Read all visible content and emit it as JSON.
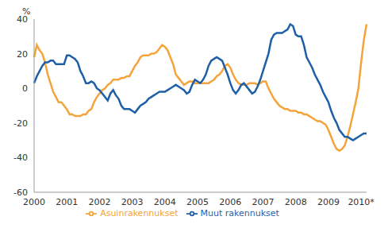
{
  "chart_data": {
    "type": "line",
    "y_label": "%",
    "categories": [
      "2000",
      null,
      null,
      null,
      null,
      null,
      null,
      null,
      null,
      null,
      null,
      null,
      "2001",
      null,
      null,
      null,
      null,
      null,
      null,
      null,
      null,
      null,
      null,
      null,
      "2002",
      null,
      null,
      null,
      null,
      null,
      null,
      null,
      null,
      null,
      null,
      null,
      "2003",
      null,
      null,
      null,
      null,
      null,
      null,
      null,
      null,
      null,
      null,
      null,
      "2004",
      null,
      null,
      null,
      null,
      null,
      null,
      null,
      null,
      null,
      null,
      null,
      "2005",
      null,
      null,
      null,
      null,
      null,
      null,
      null,
      null,
      null,
      null,
      null,
      "2006",
      null,
      null,
      null,
      null,
      null,
      null,
      null,
      null,
      null,
      null,
      null,
      "2007",
      null,
      null,
      null,
      null,
      null,
      null,
      null,
      null,
      null,
      null,
      null,
      "2008",
      null,
      null,
      null,
      null,
      null,
      null,
      null,
      null,
      null,
      null,
      null,
      "2009",
      null,
      null,
      null,
      null,
      null,
      null,
      null,
      null,
      null,
      null,
      null,
      "2010*",
      null,
      null
    ],
    "series": [
      {
        "name": "Asuinrakennukset",
        "color": "#f5a43c",
        "values": [
          18,
          25,
          22,
          20,
          15,
          8,
          3,
          -2,
          -5,
          -8,
          -8,
          -10,
          -12,
          -15,
          -15,
          -16,
          -16,
          -16,
          -15,
          -15,
          -13,
          -12,
          -8,
          -5,
          -3,
          -1,
          0,
          2,
          3,
          5,
          5,
          5,
          6,
          6,
          7,
          7,
          10,
          13,
          15,
          18,
          19,
          19,
          19,
          20,
          20,
          21,
          23,
          25,
          24,
          22,
          18,
          14,
          8,
          6,
          4,
          2,
          3,
          4,
          4,
          3,
          3,
          3,
          3,
          3,
          3,
          4,
          5,
          7,
          8,
          10,
          13,
          14,
          12,
          8,
          5,
          3,
          2,
          2,
          2,
          3,
          3,
          3,
          2,
          3,
          4,
          4,
          0,
          -3,
          -6,
          -8,
          -10,
          -11,
          -12,
          -12,
          -13,
          -13,
          -13,
          -14,
          -14,
          -15,
          -15,
          -16,
          -17,
          -18,
          -19,
          -19,
          -20,
          -21,
          -24,
          -28,
          -32,
          -35,
          -36,
          -35,
          -33,
          -28,
          -22,
          -15,
          -8,
          0,
          15,
          28,
          37
        ]
      },
      {
        "name": "Muut rakennukset",
        "color": "#1f5fa8",
        "values": [
          3,
          7,
          10,
          13,
          15,
          15,
          16,
          16,
          14,
          14,
          14,
          14,
          19,
          19,
          18,
          17,
          15,
          10,
          7,
          3,
          3,
          4,
          3,
          0,
          -1,
          -3,
          -5,
          -7,
          -3,
          -1,
          -4,
          -6,
          -10,
          -12,
          -12,
          -12,
          -13,
          -14,
          -12,
          -10,
          -9,
          -8,
          -6,
          -5,
          -4,
          -3,
          -2,
          -2,
          -2,
          -1,
          0,
          1,
          2,
          1,
          0,
          -1,
          -3,
          -2,
          2,
          5,
          4,
          3,
          5,
          8,
          13,
          16,
          17,
          18,
          17,
          16,
          12,
          8,
          3,
          -1,
          -3,
          -1,
          2,
          3,
          1,
          -1,
          -3,
          -2,
          1,
          5,
          10,
          15,
          20,
          28,
          31,
          32,
          32,
          32,
          33,
          34,
          37,
          36,
          31,
          30,
          30,
          25,
          18,
          15,
          12,
          8,
          5,
          2,
          -2,
          -5,
          -8,
          -13,
          -17,
          -20,
          -24,
          -26,
          -28,
          -28,
          -29,
          -30,
          -29,
          -28,
          -27,
          -26,
          -26
        ]
      }
    ],
    "ylim": [
      -60,
      40
    ],
    "yticks": [
      -60,
      -40,
      -20,
      0,
      20,
      40
    ],
    "grid": false,
    "legend": "bottom"
  }
}
